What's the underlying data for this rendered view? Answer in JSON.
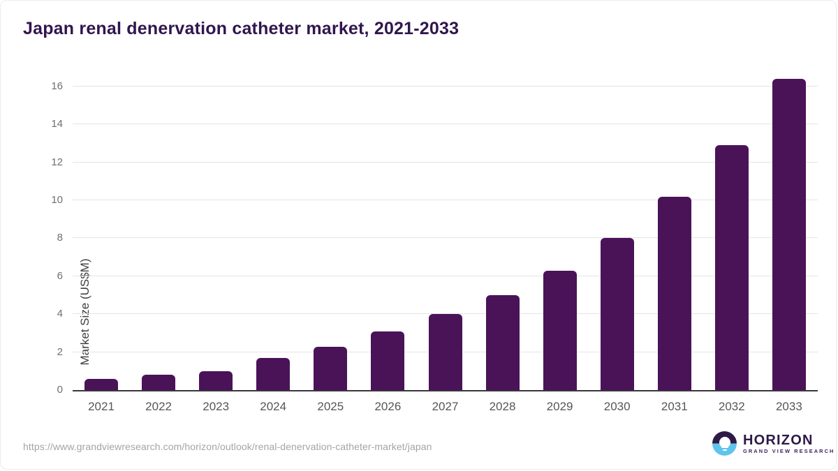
{
  "title": "Japan renal denervation catheter market, 2021-2033",
  "chart_data": {
    "type": "bar",
    "title": "Japan renal denervation catheter market, 2021-2033",
    "categories": [
      "2021",
      "2022",
      "2023",
      "2024",
      "2025",
      "2026",
      "2027",
      "2028",
      "2029",
      "2030",
      "2031",
      "2032",
      "2033"
    ],
    "values": [
      0.6,
      0.8,
      1.0,
      1.7,
      2.3,
      3.1,
      4.0,
      5.0,
      6.3,
      8.0,
      10.2,
      12.9,
      16.4
    ],
    "xlabel": "",
    "ylabel": "Market Size (US$M)",
    "ylim": [
      0,
      16.4
    ],
    "yticks": [
      0,
      2,
      4,
      6,
      8,
      10,
      12,
      14,
      16
    ],
    "grid": true,
    "legend": false,
    "bar_color": "#4a1358"
  },
  "footer": {
    "source_url": "https://www.grandviewresearch.com/horizon/outlook/renal-denervation-catheter-market/japan",
    "logo": {
      "name": "HORIZON",
      "subtitle": "GRAND VIEW RESEARCH"
    }
  },
  "colors": {
    "title_text": "#31164d",
    "bar": "#4a1358",
    "gridline": "#e4e4e4",
    "axis_line": "#3a353d",
    "tick_label": "#6f6f6f",
    "x_label": "#565656",
    "url_text": "#a4a4a4",
    "logo_purple": "#2e1a47",
    "logo_blue": "#5fc4ec"
  }
}
